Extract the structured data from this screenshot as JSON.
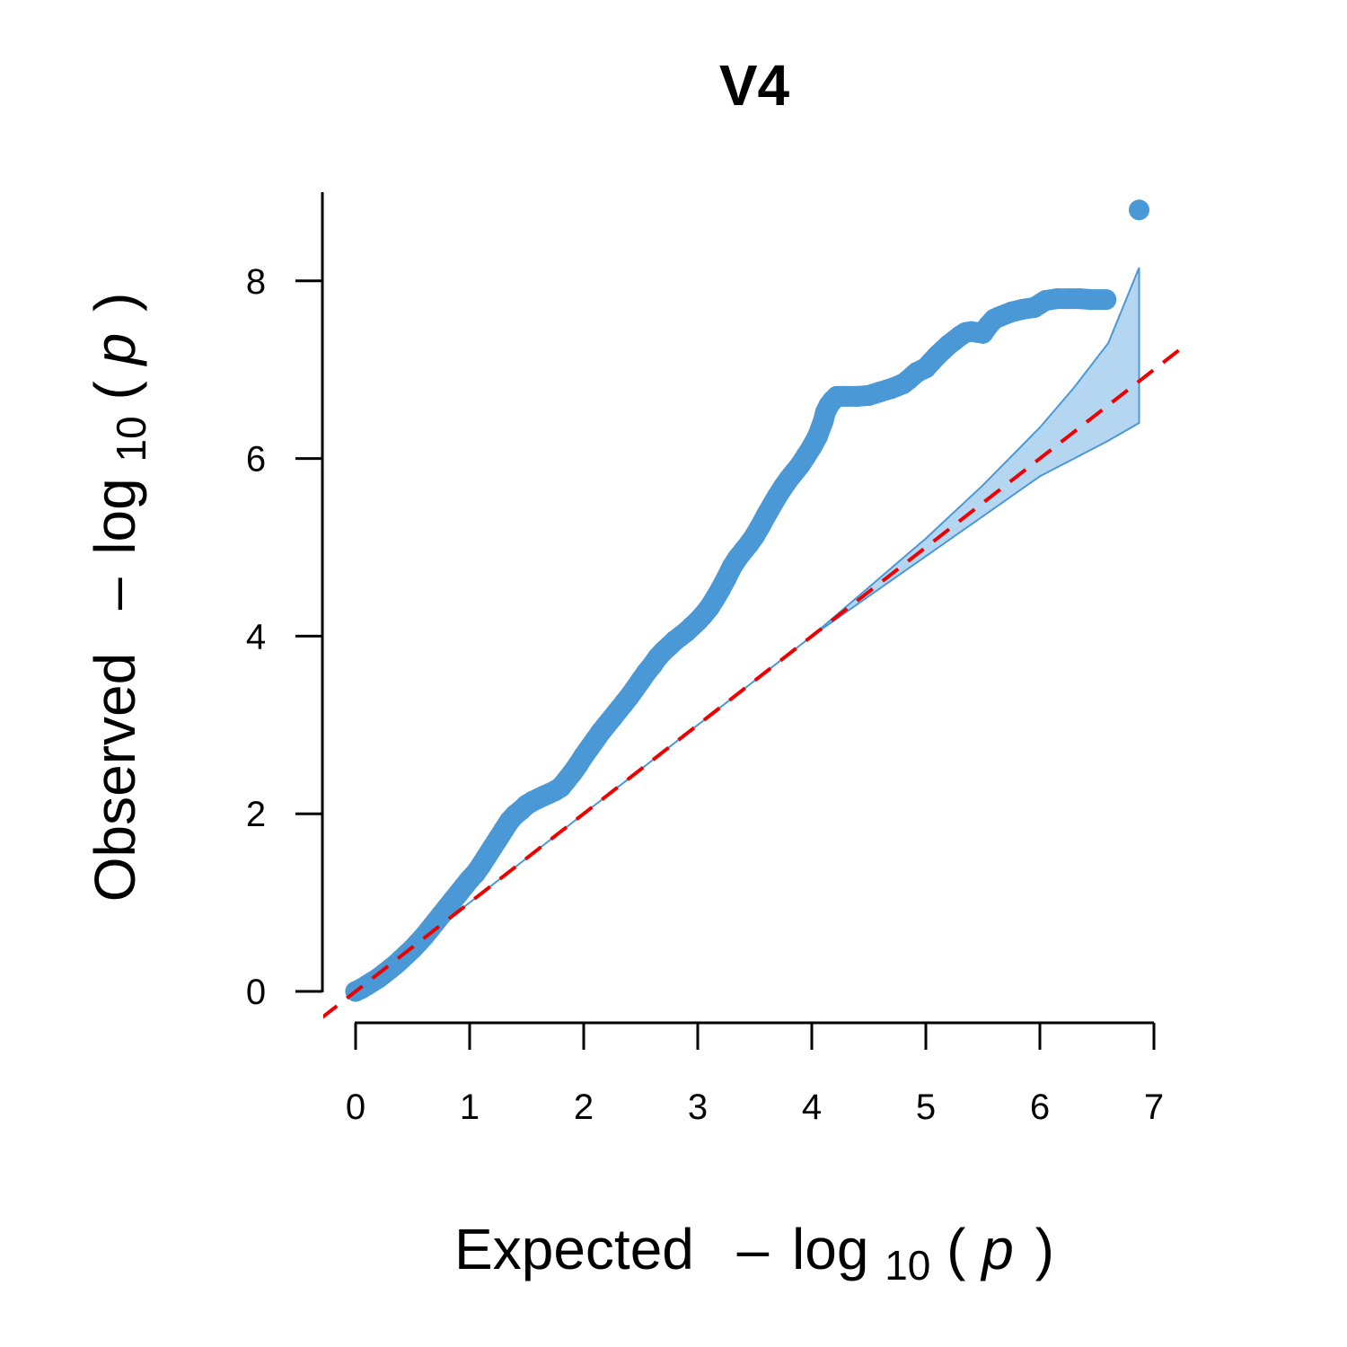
{
  "chart_data": {
    "type": "scatter",
    "title": "V4",
    "xlabel": {
      "prefix": "Expected",
      "minus": "–",
      "log": "log",
      "sub": "10",
      "open": "(",
      "p": "p",
      "close": ")"
    },
    "ylabel": {
      "prefix": "Observed",
      "minus": "–",
      "log": "log",
      "sub": "10",
      "open": "(",
      "p": "p",
      "close": ")"
    },
    "xlim": [
      0,
      7
    ],
    "ylim": [
      0,
      8.8
    ],
    "x_ticks": [
      "0",
      "1",
      "2",
      "3",
      "4",
      "5",
      "6",
      "7"
    ],
    "y_ticks": [
      "0",
      "2",
      "4",
      "6",
      "8"
    ],
    "grid": false,
    "colors": {
      "points": "#4a98d6",
      "band_fill": "#b5d6f0",
      "band_stroke": "#4a98d6",
      "reference_line": "#ee0000"
    },
    "reference_line": {
      "slope": 1,
      "intercept": 0,
      "style": "dashed"
    },
    "confidence_band": {
      "x": [
        0,
        3.0,
        4.0,
        4.5,
        5.0,
        5.5,
        6.0,
        6.3,
        6.6,
        6.87
      ],
      "upper": [
        0,
        3.0,
        4.0,
        4.55,
        5.1,
        5.7,
        6.35,
        6.8,
        7.3,
        8.15
      ],
      "lower": [
        0,
        3.0,
        4.0,
        4.45,
        4.9,
        5.35,
        5.8,
        6.0,
        6.2,
        6.4
      ]
    },
    "series": [
      {
        "points": [
          [
            0.0,
            0.0
          ],
          [
            0.05,
            0.03
          ],
          [
            0.1,
            0.07
          ],
          [
            0.15,
            0.11
          ],
          [
            0.2,
            0.15
          ],
          [
            0.25,
            0.2
          ],
          [
            0.3,
            0.25
          ],
          [
            0.35,
            0.3
          ],
          [
            0.4,
            0.36
          ],
          [
            0.45,
            0.42
          ],
          [
            0.5,
            0.48
          ],
          [
            0.55,
            0.55
          ],
          [
            0.6,
            0.62
          ],
          [
            0.65,
            0.7
          ],
          [
            0.7,
            0.78
          ],
          [
            0.75,
            0.86
          ],
          [
            0.8,
            0.94
          ],
          [
            0.85,
            1.02
          ],
          [
            0.9,
            1.1
          ],
          [
            0.95,
            1.18
          ],
          [
            1.0,
            1.26
          ],
          [
            1.05,
            1.33
          ],
          [
            1.1,
            1.42
          ],
          [
            1.15,
            1.52
          ],
          [
            1.2,
            1.62
          ],
          [
            1.25,
            1.72
          ],
          [
            1.3,
            1.82
          ],
          [
            1.35,
            1.92
          ],
          [
            1.4,
            1.99
          ],
          [
            1.45,
            2.04
          ],
          [
            1.5,
            2.1
          ],
          [
            1.55,
            2.14
          ],
          [
            1.6,
            2.17
          ],
          [
            1.65,
            2.2
          ],
          [
            1.7,
            2.23
          ],
          [
            1.75,
            2.26
          ],
          [
            1.8,
            2.3
          ],
          [
            1.85,
            2.38
          ],
          [
            1.9,
            2.46
          ],
          [
            1.95,
            2.55
          ],
          [
            2.0,
            2.65
          ],
          [
            2.05,
            2.74
          ],
          [
            2.1,
            2.83
          ],
          [
            2.15,
            2.92
          ],
          [
            2.2,
            3.0
          ],
          [
            2.25,
            3.08
          ],
          [
            2.3,
            3.16
          ],
          [
            2.35,
            3.24
          ],
          [
            2.4,
            3.32
          ],
          [
            2.45,
            3.41
          ],
          [
            2.5,
            3.5
          ],
          [
            2.55,
            3.59
          ],
          [
            2.6,
            3.67
          ],
          [
            2.65,
            3.76
          ],
          [
            2.7,
            3.83
          ],
          [
            2.75,
            3.89
          ],
          [
            2.8,
            3.95
          ],
          [
            2.85,
            4.0
          ],
          [
            2.9,
            4.05
          ],
          [
            2.95,
            4.11
          ],
          [
            3.0,
            4.17
          ],
          [
            3.05,
            4.24
          ],
          [
            3.1,
            4.32
          ],
          [
            3.15,
            4.42
          ],
          [
            3.2,
            4.53
          ],
          [
            3.25,
            4.65
          ],
          [
            3.3,
            4.78
          ],
          [
            3.35,
            4.88
          ],
          [
            3.4,
            4.96
          ],
          [
            3.45,
            5.04
          ],
          [
            3.5,
            5.13
          ],
          [
            3.55,
            5.24
          ],
          [
            3.6,
            5.36
          ],
          [
            3.65,
            5.47
          ],
          [
            3.7,
            5.58
          ],
          [
            3.75,
            5.68
          ],
          [
            3.8,
            5.77
          ],
          [
            3.85,
            5.85
          ],
          [
            3.9,
            5.93
          ],
          [
            3.95,
            6.03
          ],
          [
            4.0,
            6.13
          ],
          [
            4.05,
            6.25
          ],
          [
            4.1,
            6.42
          ],
          [
            4.12,
            6.52
          ],
          [
            4.15,
            6.6
          ],
          [
            4.18,
            6.65
          ],
          [
            4.22,
            6.7
          ],
          [
            4.3,
            6.7
          ],
          [
            4.4,
            6.7
          ],
          [
            4.5,
            6.71
          ],
          [
            4.6,
            6.75
          ],
          [
            4.7,
            6.79
          ],
          [
            4.8,
            6.84
          ],
          [
            4.85,
            6.89
          ],
          [
            4.92,
            6.97
          ],
          [
            5.0,
            7.02
          ],
          [
            5.05,
            7.09
          ],
          [
            5.1,
            7.16
          ],
          [
            5.15,
            7.22
          ],
          [
            5.2,
            7.28
          ],
          [
            5.25,
            7.33
          ],
          [
            5.3,
            7.38
          ],
          [
            5.35,
            7.42
          ],
          [
            5.4,
            7.43
          ],
          [
            5.45,
            7.42
          ],
          [
            5.5,
            7.41
          ],
          [
            5.55,
            7.5
          ],
          [
            5.6,
            7.57
          ],
          [
            5.65,
            7.6
          ],
          [
            5.75,
            7.65
          ],
          [
            5.85,
            7.68
          ],
          [
            5.95,
            7.7
          ],
          [
            6.05,
            7.78
          ],
          [
            6.15,
            7.8
          ],
          [
            6.25,
            7.8
          ],
          [
            6.35,
            7.8
          ],
          [
            6.45,
            7.79
          ],
          [
            6.58,
            7.79
          ],
          [
            6.87,
            8.8
          ]
        ]
      }
    ]
  }
}
